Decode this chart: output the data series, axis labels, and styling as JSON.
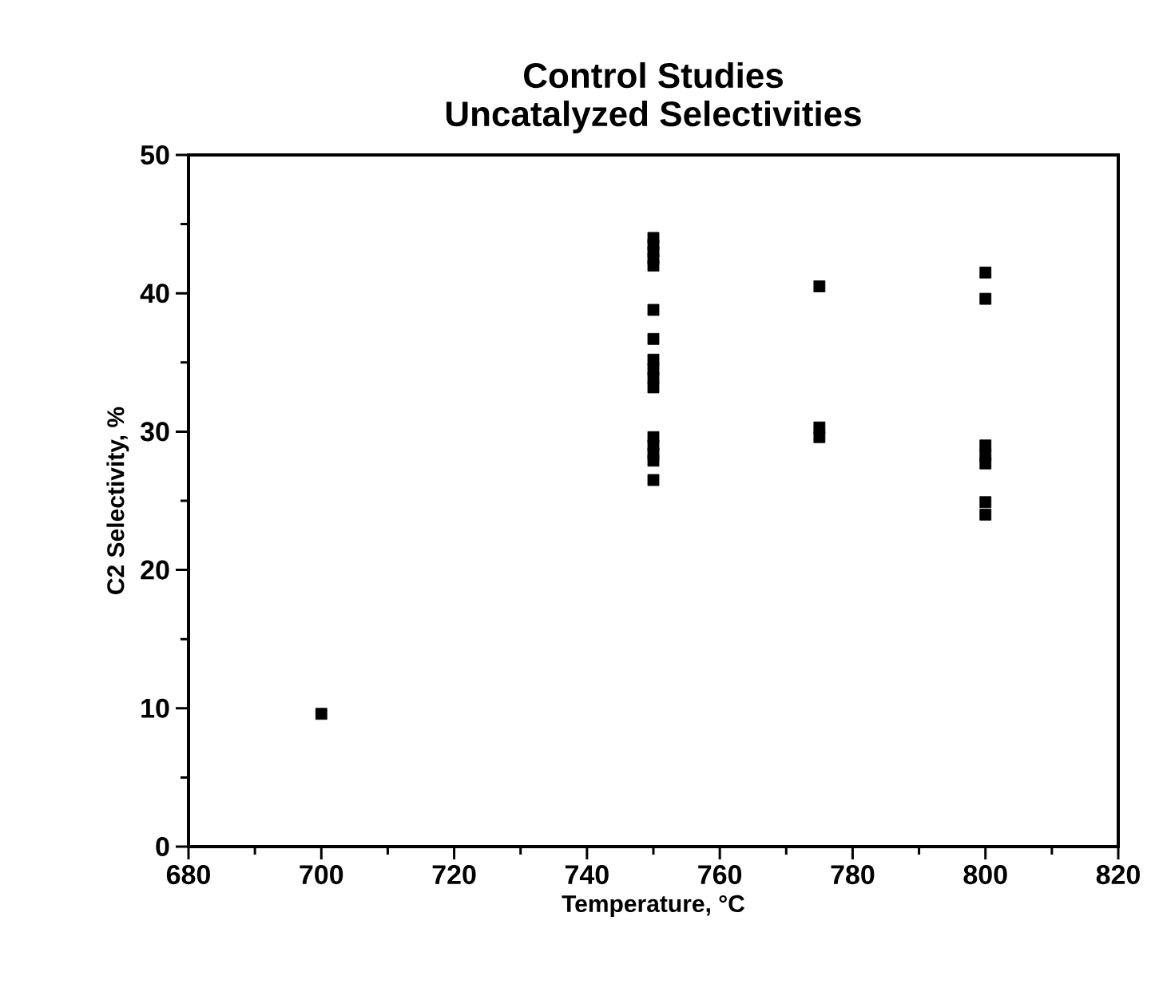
{
  "chart_data": {
    "type": "scatter",
    "title": "Control Studies\nUncatalyzed  Selectivities",
    "xlabel": "Temperature,  °C",
    "ylabel": "C2 Selectivity,  %",
    "x": [
      700,
      750,
      750,
      750,
      750,
      750,
      750,
      750,
      750,
      750,
      750,
      750,
      750,
      750,
      750,
      750,
      750,
      775,
      775,
      775,
      800,
      800,
      800,
      800,
      800,
      800,
      800
    ],
    "values": [
      9.6,
      44,
      43.5,
      43,
      42.5,
      42,
      38.8,
      36.7,
      35.2,
      34.5,
      33.9,
      33.2,
      29.6,
      29,
      28.4,
      27.9,
      26.5,
      40.5,
      30.3,
      29.6,
      41.5,
      39.6,
      29,
      28.3,
      27.7,
      24.9,
      24
    ],
    "color": "#000000",
    "marker": "square",
    "xlim": [
      680,
      820
    ],
    "ylim": [
      0,
      50
    ],
    "xticks": [
      680,
      700,
      720,
      740,
      760,
      780,
      800,
      820
    ],
    "yticks": [
      0,
      10,
      20,
      30,
      40,
      50
    ],
    "grid": false
  }
}
